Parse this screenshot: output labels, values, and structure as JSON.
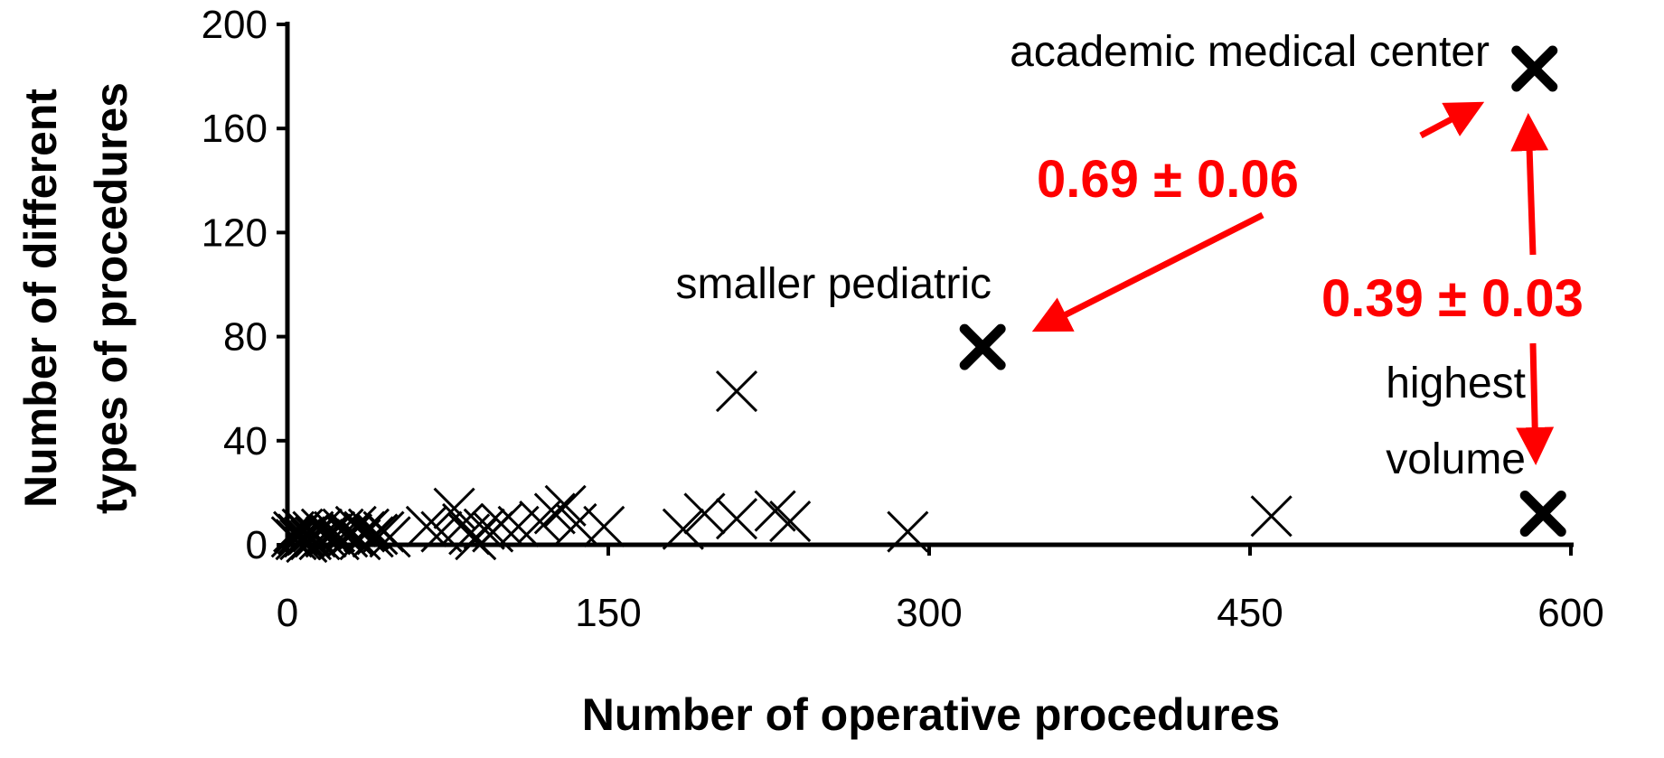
{
  "chart_data": {
    "type": "scatter",
    "title": "",
    "xlabel": "Number of operative procedures",
    "ylabel_lines": [
      "Number of different",
      "types of procedures"
    ],
    "xlim": [
      0,
      600
    ],
    "ylim": [
      0,
      200
    ],
    "xticks": [
      "0",
      "150",
      "300",
      "450",
      "600"
    ],
    "yticks": [
      "0",
      "40",
      "80",
      "120",
      "160",
      "200"
    ],
    "grid": false,
    "marker": "x",
    "series": [
      {
        "points": [
          {
            "x": 2,
            "y": 3
          },
          {
            "x": 3,
            "y": 5
          },
          {
            "x": 4,
            "y": 2
          },
          {
            "x": 5,
            "y": 4
          },
          {
            "x": 6,
            "y": 2
          },
          {
            "x": 7,
            "y": 6
          },
          {
            "x": 8,
            "y": 3
          },
          {
            "x": 9,
            "y": 1
          },
          {
            "x": 10,
            "y": 4
          },
          {
            "x": 11,
            "y": 2
          },
          {
            "x": 12,
            "y": 5
          },
          {
            "x": 13,
            "y": 3
          },
          {
            "x": 15,
            "y": 2
          },
          {
            "x": 16,
            "y": 6
          },
          {
            "x": 18,
            "y": 3
          },
          {
            "x": 20,
            "y": 4
          },
          {
            "x": 22,
            "y": 5
          },
          {
            "x": 24,
            "y": 2
          },
          {
            "x": 26,
            "y": 6
          },
          {
            "x": 28,
            "y": 3
          },
          {
            "x": 30,
            "y": 4
          },
          {
            "x": 32,
            "y": 7
          },
          {
            "x": 34,
            "y": 2
          },
          {
            "x": 36,
            "y": 5
          },
          {
            "x": 38,
            "y": 6
          },
          {
            "x": 40,
            "y": 3
          },
          {
            "x": 42,
            "y": 4
          },
          {
            "x": 45,
            "y": 5
          },
          {
            "x": 48,
            "y": 3
          },
          {
            "x": 65,
            "y": 7
          },
          {
            "x": 72,
            "y": 5
          },
          {
            "x": 78,
            "y": 14
          },
          {
            "x": 82,
            "y": 8
          },
          {
            "x": 85,
            "y": 4
          },
          {
            "x": 88,
            "y": 2
          },
          {
            "x": 92,
            "y": 6
          },
          {
            "x": 96,
            "y": 5
          },
          {
            "x": 100,
            "y": 8
          },
          {
            "x": 108,
            "y": 7
          },
          {
            "x": 118,
            "y": 9
          },
          {
            "x": 125,
            "y": 12
          },
          {
            "x": 130,
            "y": 15
          },
          {
            "x": 135,
            "y": 8
          },
          {
            "x": 148,
            "y": 7
          },
          {
            "x": 185,
            "y": 6
          },
          {
            "x": 195,
            "y": 12
          },
          {
            "x": 210,
            "y": 10
          },
          {
            "x": 228,
            "y": 13
          },
          {
            "x": 235,
            "y": 9
          },
          {
            "x": 290,
            "y": 5
          },
          {
            "x": 460,
            "y": 11
          },
          {
            "x": 210,
            "y": 59
          },
          {
            "x": 325,
            "y": 76,
            "emphasis": true
          },
          {
            "x": 583,
            "y": 183,
            "emphasis": true
          },
          {
            "x": 587,
            "y": 12,
            "emphasis": true
          }
        ]
      }
    ],
    "annotations": [
      {
        "text": "academic medical center",
        "color": "#000000"
      },
      {
        "text": "smaller pediatric",
        "color": "#000000"
      },
      {
        "text_lines": [
          "highest",
          "volume"
        ],
        "color": "#000000"
      },
      {
        "text": "0.69 ± 0.06",
        "color": "#ff0000"
      },
      {
        "text": "0.39 ± 0.03",
        "color": "#ff0000"
      }
    ]
  }
}
